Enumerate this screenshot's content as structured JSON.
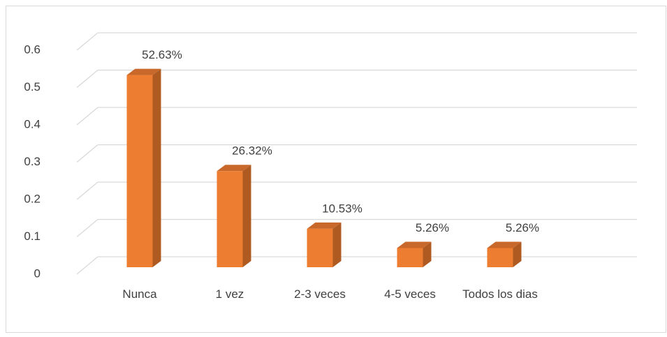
{
  "chart_data": {
    "type": "bar3d",
    "categories": [
      "Nunca",
      "1 vez",
      "2-3 veces",
      "4-5 veces",
      "Todos los dias"
    ],
    "values": [
      0.5263,
      0.2632,
      0.1053,
      0.0526,
      0.0526
    ],
    "value_labels": [
      "52.63%",
      "26.32%",
      "10.53%",
      "5.26%",
      "5.26%"
    ],
    "color": "#ed7d31",
    "ylim": [
      0,
      0.6
    ],
    "yticks": [
      0,
      0.1,
      0.2,
      0.3,
      0.4,
      0.5,
      0.6
    ],
    "grid": true
  }
}
